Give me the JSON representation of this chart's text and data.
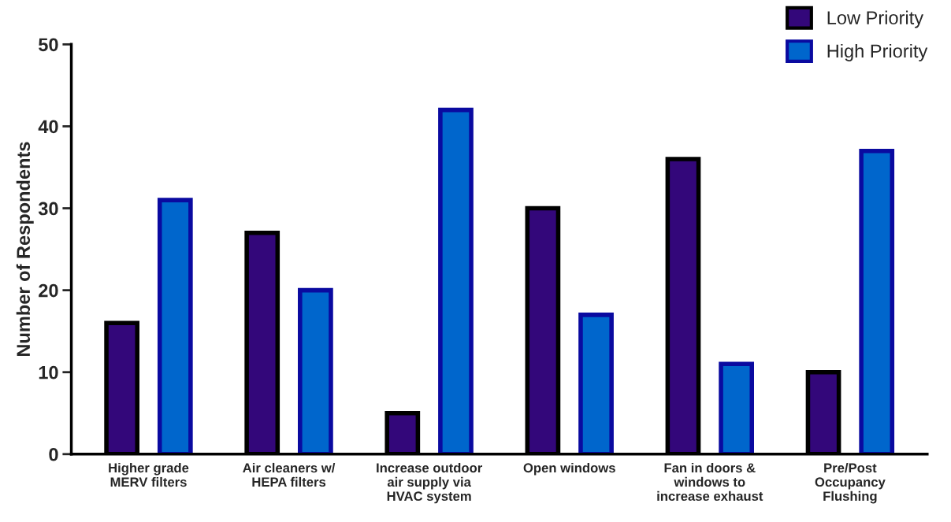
{
  "chart_data": {
    "type": "bar",
    "ylabel": "Number of Respondents",
    "categories": [
      "Higher grade\nMERV filters",
      "Air cleaners w/\nHEPA filters",
      "Increase outdoor\nair supply via\nHVAC system",
      "Open windows",
      "Fan in doors &\nwindows to\nincrease exhaust",
      "Pre/Post\nOccupancy\nFlushing"
    ],
    "series": [
      {
        "name": "Low Priority",
        "color": "#33077a",
        "values": [
          16,
          27,
          5,
          30,
          36,
          10
        ]
      },
      {
        "name": "High Priority",
        "color": "#0066cc",
        "values": [
          31,
          20,
          42,
          17,
          11,
          37
        ]
      }
    ],
    "ylim": [
      0,
      50
    ],
    "yticks": [
      0,
      10,
      20,
      30,
      40,
      50
    ],
    "grid": false,
    "legend": "top right"
  }
}
